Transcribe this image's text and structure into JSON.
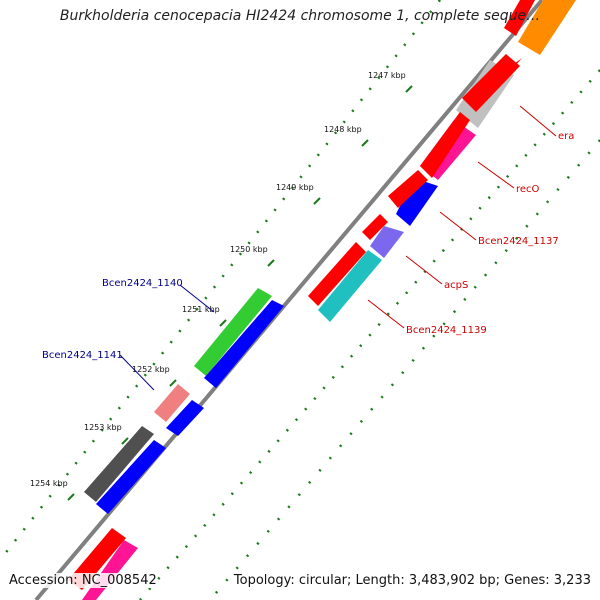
{
  "title": "Burkholderia cenocepacia HI2424 chromosome 1, complete seque…",
  "accession": "Accession: NC_008542",
  "summary": "Topology: circular; Length: 3,483,902 bp; Genes: 3,233",
  "colors": {
    "backbone": "#808080",
    "tick": "#1a7a1a",
    "label_red": "#cc0000",
    "label_blue": "#00008b"
  },
  "ticks": [
    {
      "kbp": 1247,
      "label": "1247 kbp"
    },
    {
      "kbp": 1248,
      "label": "1248 kbp"
    },
    {
      "kbp": 1249,
      "label": "1249 kbp"
    },
    {
      "kbp": 1250,
      "label": "1250 kbp"
    },
    {
      "kbp": 1251,
      "label": "1251 kbp"
    },
    {
      "kbp": 1252,
      "label": "1252 kbp"
    },
    {
      "kbp": 1253,
      "label": "1253 kbp"
    },
    {
      "kbp": 1254,
      "label": "1254 kbp"
    }
  ],
  "gene_labels": [
    {
      "name": "era",
      "color": "#cc0000"
    },
    {
      "name": "recO",
      "color": "#cc0000"
    },
    {
      "name": "Bcen2424_1137",
      "color": "#cc0000"
    },
    {
      "name": "acpS",
      "color": "#cc0000"
    },
    {
      "name": "Bcen2424_1139",
      "color": "#cc0000"
    },
    {
      "name": "Bcen2424_1140",
      "color": "#00008b"
    },
    {
      "name": "Bcen2424_1141",
      "color": "#00008b"
    }
  ],
  "features": [
    {
      "name": "feature-orange",
      "color": "#ff8c00"
    },
    {
      "name": "feature-red",
      "color": "#ff0000"
    },
    {
      "name": "feature-grey",
      "color": "#c0c0c0"
    },
    {
      "name": "feature-pink",
      "color": "#ff1493"
    },
    {
      "name": "feature-blue",
      "color": "#0000ff"
    },
    {
      "name": "feature-purple",
      "color": "#7b68ee"
    },
    {
      "name": "feature-cyan",
      "color": "#20c0c0"
    },
    {
      "name": "feature-green",
      "color": "#33cc33"
    },
    {
      "name": "feature-salmon",
      "color": "#f08080"
    },
    {
      "name": "feature-darkgrey",
      "color": "#505050"
    }
  ]
}
